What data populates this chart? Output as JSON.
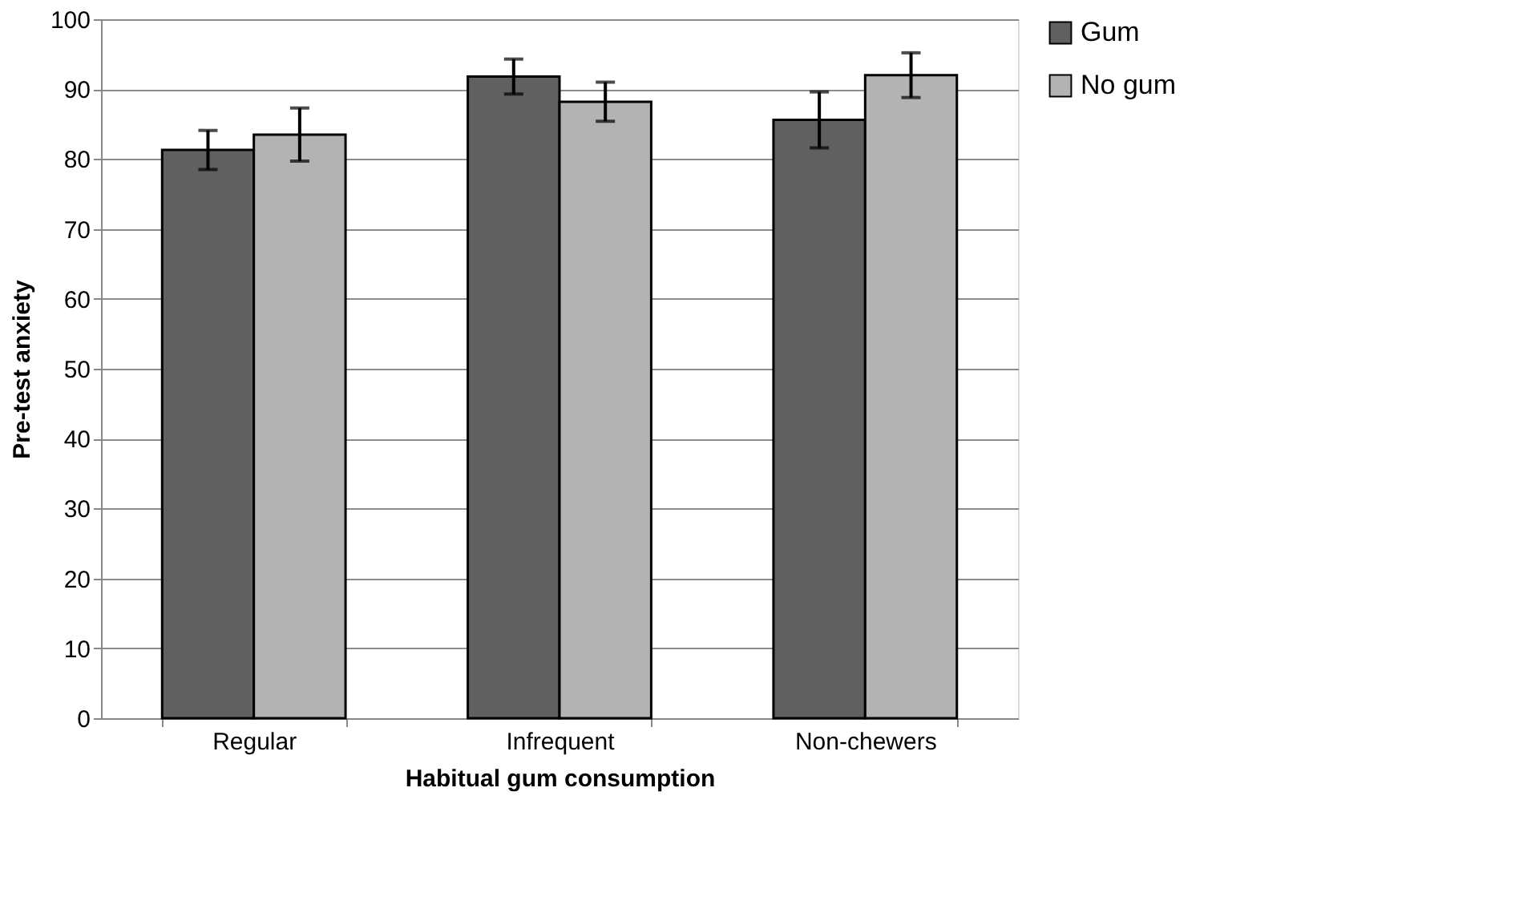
{
  "chart_data": {
    "type": "bar",
    "xlabel": "Habitual gum consumption",
    "ylabel": "Pre-test anxiety",
    "categories": [
      "Regular",
      "Infrequent",
      "Non-chewers"
    ],
    "series": [
      {
        "name": "Gum",
        "color": "#606060",
        "values": [
          81.3,
          91.8,
          85.6
        ],
        "errors": [
          2.8,
          2.5,
          4.0
        ]
      },
      {
        "name": "No gum",
        "color": "#b3b3b3",
        "values": [
          83.5,
          88.2,
          92.0
        ],
        "errors": [
          3.8,
          2.8,
          3.2
        ]
      }
    ],
    "ylim": [
      0,
      100
    ],
    "yticks": [
      0,
      10,
      20,
      30,
      40,
      50,
      60,
      70,
      80,
      90,
      100
    ],
    "grid": "y",
    "legend": "right"
  }
}
